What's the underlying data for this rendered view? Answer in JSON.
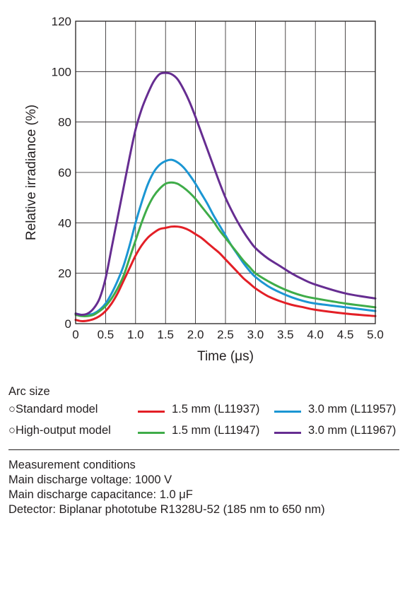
{
  "chart_data": {
    "type": "line",
    "xlabel": "Time (μs)",
    "ylabel": "Relative irradiance (%)",
    "xlim": [
      0,
      5.0
    ],
    "ylim": [
      0,
      120
    ],
    "xticks": [
      0,
      0.5,
      1.0,
      1.5,
      2.0,
      2.5,
      3.0,
      3.5,
      4.0,
      4.5,
      5.0
    ],
    "xtick_labels": [
      "0",
      "0.5",
      "1.0",
      "1.5",
      "2.0",
      "2.5",
      "3.0",
      "3.5",
      "4.0",
      "4.5",
      "5.0"
    ],
    "yticks": [
      0,
      20,
      40,
      60,
      80,
      100,
      120
    ],
    "ytick_labels": [
      "0",
      "20",
      "40",
      "60",
      "80",
      "100",
      "120"
    ],
    "grid": true,
    "series": [
      {
        "name": "1.5 mm (L11937)",
        "model": "Standard model",
        "color": "#e31f26",
        "points": [
          [
            0,
            1.5
          ],
          [
            0.1,
            1
          ],
          [
            0.2,
            1.2
          ],
          [
            0.3,
            1.8
          ],
          [
            0.4,
            3
          ],
          [
            0.5,
            5
          ],
          [
            0.6,
            8
          ],
          [
            0.7,
            12
          ],
          [
            0.8,
            17
          ],
          [
            0.9,
            22
          ],
          [
            1.0,
            27
          ],
          [
            1.1,
            31
          ],
          [
            1.2,
            34
          ],
          [
            1.3,
            36
          ],
          [
            1.4,
            37.5
          ],
          [
            1.5,
            38
          ],
          [
            1.6,
            38.5
          ],
          [
            1.7,
            38.5
          ],
          [
            1.8,
            38
          ],
          [
            1.9,
            37
          ],
          [
            2.0,
            35.5
          ],
          [
            2.1,
            34
          ],
          [
            2.2,
            32
          ],
          [
            2.3,
            30
          ],
          [
            2.4,
            28
          ],
          [
            2.5,
            25.5
          ],
          [
            2.6,
            23
          ],
          [
            2.7,
            20.5
          ],
          [
            2.8,
            18
          ],
          [
            2.9,
            16
          ],
          [
            3.0,
            14
          ],
          [
            3.2,
            11
          ],
          [
            3.4,
            9
          ],
          [
            3.6,
            7.5
          ],
          [
            3.8,
            6.5
          ],
          [
            4.0,
            5.5
          ],
          [
            4.5,
            4
          ],
          [
            5.0,
            3
          ]
        ]
      },
      {
        "name": "3.0 mm (L11957)",
        "model": "Standard model",
        "color": "#1b96d3",
        "points": [
          [
            0,
            4
          ],
          [
            0.1,
            3.5
          ],
          [
            0.2,
            3.5
          ],
          [
            0.3,
            4
          ],
          [
            0.4,
            5.5
          ],
          [
            0.5,
            8
          ],
          [
            0.6,
            12
          ],
          [
            0.7,
            17
          ],
          [
            0.8,
            23
          ],
          [
            0.9,
            31
          ],
          [
            1.0,
            40
          ],
          [
            1.1,
            48
          ],
          [
            1.2,
            55
          ],
          [
            1.3,
            60
          ],
          [
            1.4,
            63
          ],
          [
            1.5,
            64.5
          ],
          [
            1.6,
            65
          ],
          [
            1.7,
            64
          ],
          [
            1.8,
            62
          ],
          [
            1.9,
            59
          ],
          [
            2.0,
            55.5
          ],
          [
            2.1,
            51.5
          ],
          [
            2.2,
            47.5
          ],
          [
            2.3,
            43
          ],
          [
            2.4,
            39
          ],
          [
            2.5,
            35
          ],
          [
            2.6,
            31
          ],
          [
            2.7,
            27.5
          ],
          [
            2.8,
            24
          ],
          [
            2.9,
            21
          ],
          [
            3.0,
            18.5
          ],
          [
            3.2,
            15
          ],
          [
            3.4,
            12.5
          ],
          [
            3.6,
            10.5
          ],
          [
            3.8,
            9
          ],
          [
            4.0,
            8
          ],
          [
            4.5,
            6.5
          ],
          [
            5.0,
            5
          ]
        ]
      },
      {
        "name": "1.5 mm (L11947)",
        "model": "High-output model",
        "color": "#3fac49",
        "points": [
          [
            0,
            3.5
          ],
          [
            0.1,
            3
          ],
          [
            0.2,
            3
          ],
          [
            0.3,
            3.5
          ],
          [
            0.4,
            5
          ],
          [
            0.5,
            7
          ],
          [
            0.6,
            10
          ],
          [
            0.7,
            14
          ],
          [
            0.8,
            19
          ],
          [
            0.9,
            26
          ],
          [
            1.0,
            33
          ],
          [
            1.1,
            40
          ],
          [
            1.2,
            46
          ],
          [
            1.3,
            50.5
          ],
          [
            1.4,
            53.5
          ],
          [
            1.5,
            55.5
          ],
          [
            1.6,
            56
          ],
          [
            1.7,
            55.5
          ],
          [
            1.8,
            54
          ],
          [
            1.9,
            52
          ],
          [
            2.0,
            49.5
          ],
          [
            2.1,
            46.5
          ],
          [
            2.2,
            43.5
          ],
          [
            2.3,
            40.5
          ],
          [
            2.4,
            37
          ],
          [
            2.5,
            34
          ],
          [
            2.6,
            31
          ],
          [
            2.7,
            28
          ],
          [
            2.8,
            25
          ],
          [
            2.9,
            22.5
          ],
          [
            3.0,
            20
          ],
          [
            3.2,
            17
          ],
          [
            3.4,
            14.5
          ],
          [
            3.6,
            12.5
          ],
          [
            3.8,
            11
          ],
          [
            4.0,
            10
          ],
          [
            4.5,
            8
          ],
          [
            5.0,
            6.5
          ]
        ]
      },
      {
        "name": "3.0 mm (L11967)",
        "model": "High-output model",
        "color": "#662d91",
        "points": [
          [
            0,
            4
          ],
          [
            0.1,
            3.5
          ],
          [
            0.2,
            4
          ],
          [
            0.3,
            6
          ],
          [
            0.4,
            10
          ],
          [
            0.5,
            18
          ],
          [
            0.6,
            30
          ],
          [
            0.7,
            42
          ],
          [
            0.8,
            54
          ],
          [
            0.9,
            66
          ],
          [
            1.0,
            77
          ],
          [
            1.1,
            85
          ],
          [
            1.2,
            91
          ],
          [
            1.3,
            96
          ],
          [
            1.4,
            99
          ],
          [
            1.5,
            99.5
          ],
          [
            1.6,
            99
          ],
          [
            1.7,
            97
          ],
          [
            1.8,
            93
          ],
          [
            1.9,
            88
          ],
          [
            2.0,
            82
          ],
          [
            2.1,
            75.5
          ],
          [
            2.2,
            69
          ],
          [
            2.3,
            62.5
          ],
          [
            2.4,
            56
          ],
          [
            2.5,
            50
          ],
          [
            2.6,
            45
          ],
          [
            2.7,
            40.5
          ],
          [
            2.8,
            36.5
          ],
          [
            2.9,
            33
          ],
          [
            3.0,
            30
          ],
          [
            3.2,
            26
          ],
          [
            3.4,
            23
          ],
          [
            3.6,
            20
          ],
          [
            3.8,
            17.5
          ],
          [
            4.0,
            15.5
          ],
          [
            4.5,
            12
          ],
          [
            5.0,
            10
          ]
        ]
      }
    ]
  },
  "legend": {
    "title": "Arc size",
    "rows": [
      {
        "model_label": "○Standard model",
        "items": [
          {
            "label": "1.5 mm (L11937)",
            "color": "#e31f26"
          },
          {
            "label": "3.0 mm (L11957)",
            "color": "#1b96d3"
          }
        ]
      },
      {
        "model_label": "○High-output model",
        "items": [
          {
            "label": "1.5 mm (L11947)",
            "color": "#3fac49"
          },
          {
            "label": "3.0 mm (L11967)",
            "color": "#662d91"
          }
        ]
      }
    ]
  },
  "conditions": {
    "title": "Measurement conditions",
    "lines": [
      "Main discharge voltage: 1000 V",
      "Main discharge capacitance: 1.0 μF",
      "Detector: Biplanar phototube R1328U-52 (185 nm to 650 nm)"
    ]
  }
}
